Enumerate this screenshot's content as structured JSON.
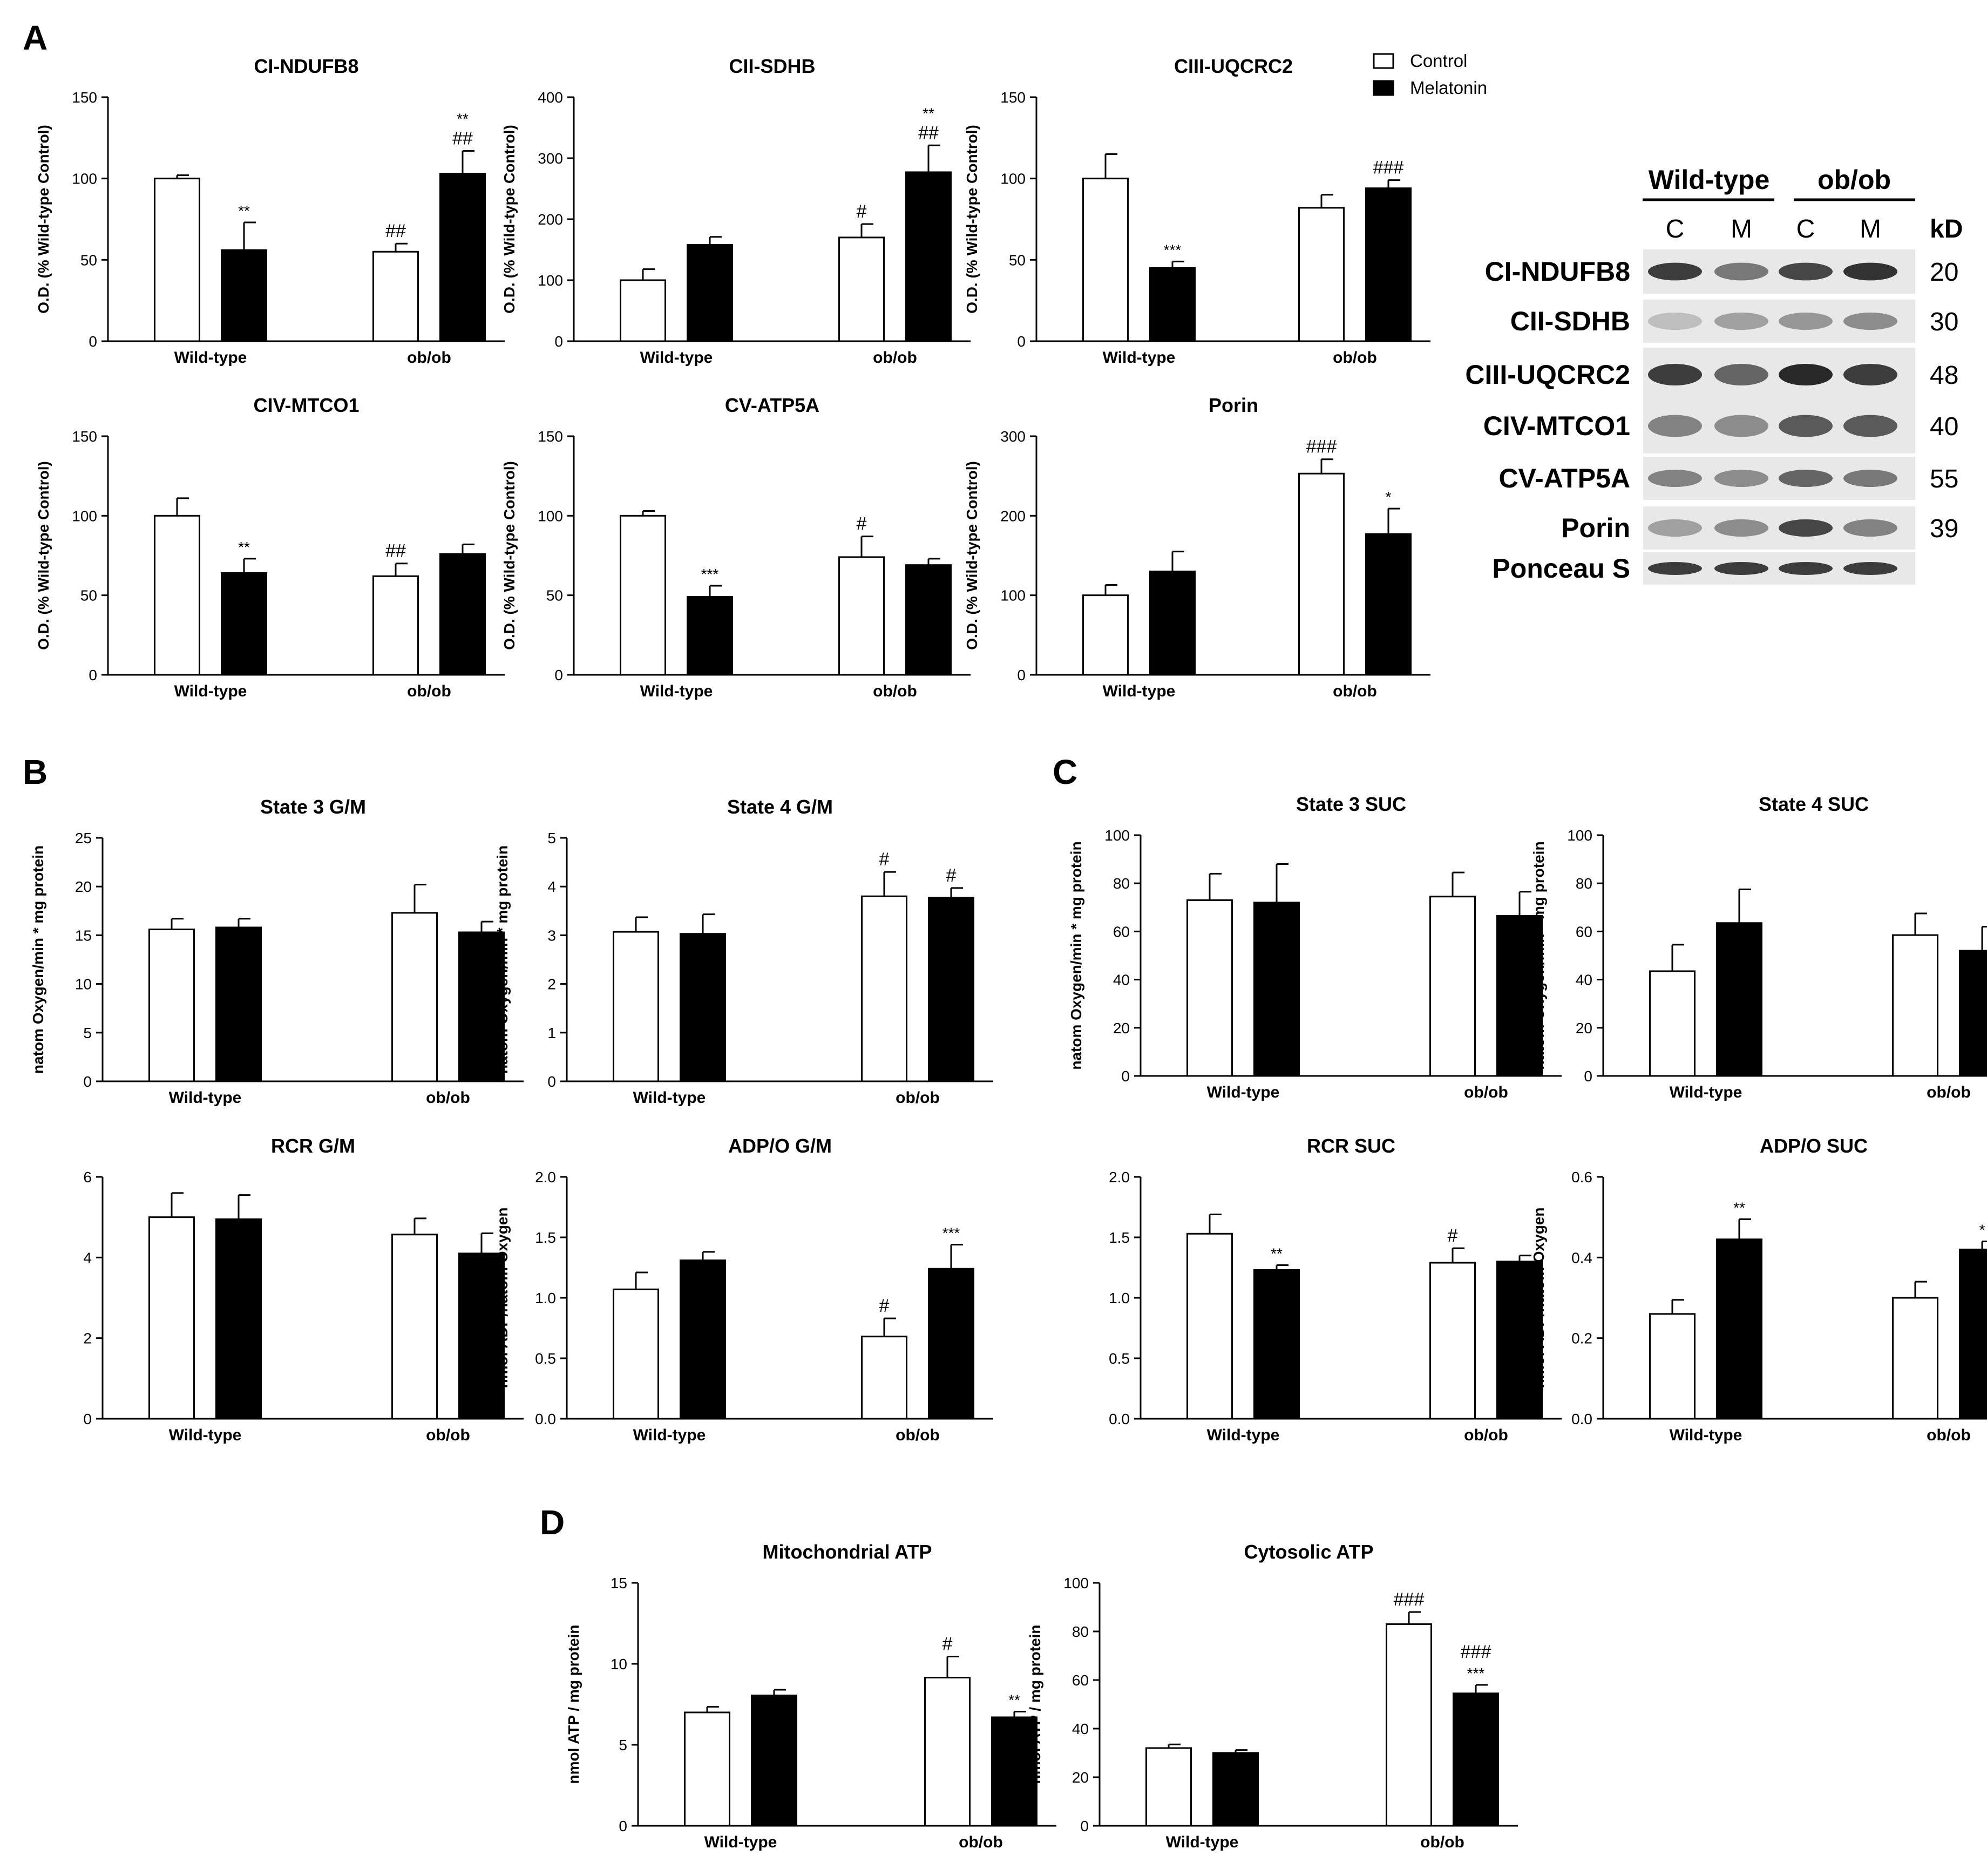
{
  "figure": {
    "panel_labels": {
      "A": "A",
      "B": "B",
      "C": "C",
      "D": "D"
    },
    "legend": {
      "control": "Control",
      "melatonin": "Melatonin"
    },
    "colors": {
      "control_fill": "#ffffff",
      "melatonin_fill": "#000000",
      "stroke": "#000000"
    }
  },
  "western_blot": {
    "group_labels": [
      "Wild-type",
      "ob/ob"
    ],
    "lane_labels": [
      "C",
      "M",
      "C",
      "M"
    ],
    "kd_header": "kD",
    "rows": [
      {
        "name": "CI-NDUFB8",
        "kd": "20"
      },
      {
        "name": "CII-SDHB",
        "kd": "30"
      },
      {
        "name": "CIII-UQCRC2",
        "kd": "48"
      },
      {
        "name": "CIV-MTCO1",
        "kd": "40"
      },
      {
        "name": "CV-ATP5A",
        "kd": "55"
      },
      {
        "name": "Porin",
        "kd": "39"
      },
      {
        "name": "Ponceau S",
        "kd": ""
      }
    ]
  },
  "chart_data": [
    {
      "id": "a1",
      "type": "bar",
      "title": "CI-NDUFB8",
      "ylabel": "O.D. (% Wild-type Control)",
      "ylim": [
        0,
        150
      ],
      "yticks": [
        "0",
        "50",
        "100",
        "150"
      ],
      "categories": [
        "Wild-type",
        "ob/ob"
      ],
      "series": [
        {
          "name": "Control",
          "values": [
            100,
            55
          ],
          "errors": [
            2,
            5
          ],
          "annotations": [
            "",
            "##"
          ]
        },
        {
          "name": "Melatonin",
          "values": [
            56,
            103
          ],
          "errors": [
            17,
            14
          ],
          "annotations": [
            "**",
            "**\n##"
          ]
        }
      ]
    },
    {
      "id": "a2",
      "type": "bar",
      "title": "CII-SDHB",
      "ylabel": "O.D. (% Wild-type Control)",
      "ylim": [
        0,
        400
      ],
      "yticks": [
        "0",
        "100",
        "200",
        "300",
        "400"
      ],
      "categories": [
        "Wild-type",
        "ob/ob"
      ],
      "series": [
        {
          "name": "Control",
          "values": [
            100,
            170
          ],
          "errors": [
            18,
            22
          ],
          "annotations": [
            "",
            "#"
          ]
        },
        {
          "name": "Melatonin",
          "values": [
            158,
            277
          ],
          "errors": [
            13,
            44
          ],
          "annotations": [
            "",
            "**\n##"
          ]
        }
      ]
    },
    {
      "id": "a3",
      "type": "bar",
      "title": "CIII-UQCRC2",
      "ylabel": "O.D. (% Wild-type Control)",
      "ylim": [
        0,
        150
      ],
      "yticks": [
        "0",
        "50",
        "100",
        "150"
      ],
      "categories": [
        "Wild-type",
        "ob/ob"
      ],
      "series": [
        {
          "name": "Control",
          "values": [
            100,
            82
          ],
          "errors": [
            15,
            8
          ],
          "annotations": [
            "",
            ""
          ]
        },
        {
          "name": "Melatonin",
          "values": [
            45,
            94
          ],
          "errors": [
            4,
            5
          ],
          "annotations": [
            "***",
            "###"
          ]
        }
      ]
    },
    {
      "id": "a4",
      "type": "bar",
      "title": "CIV-MTCO1",
      "ylabel": "O.D. (% Wild-type Control)",
      "ylim": [
        0,
        150
      ],
      "yticks": [
        "0",
        "50",
        "100",
        "150"
      ],
      "categories": [
        "Wild-type",
        "ob/ob"
      ],
      "series": [
        {
          "name": "Control",
          "values": [
            100,
            62
          ],
          "errors": [
            11,
            8
          ],
          "annotations": [
            "",
            "##"
          ]
        },
        {
          "name": "Melatonin",
          "values": [
            64,
            76
          ],
          "errors": [
            9,
            6
          ],
          "annotations": [
            "**",
            ""
          ]
        }
      ]
    },
    {
      "id": "a5",
      "type": "bar",
      "title": "CV-ATP5A",
      "ylabel": "O.D. (% Wild-type Control)",
      "ylim": [
        0,
        150
      ],
      "yticks": [
        "0",
        "50",
        "100",
        "150"
      ],
      "categories": [
        "Wild-type",
        "ob/ob"
      ],
      "series": [
        {
          "name": "Control",
          "values": [
            100,
            74
          ],
          "errors": [
            3,
            13
          ],
          "annotations": [
            "",
            "#"
          ]
        },
        {
          "name": "Melatonin",
          "values": [
            49,
            69
          ],
          "errors": [
            7,
            4
          ],
          "annotations": [
            "***",
            ""
          ]
        }
      ]
    },
    {
      "id": "a6",
      "type": "bar",
      "title": "Porin",
      "ylabel": "O.D. (% Wild-type Control)",
      "ylim": [
        0,
        300
      ],
      "yticks": [
        "0",
        "100",
        "200",
        "300"
      ],
      "categories": [
        "Wild-type",
        "ob/ob"
      ],
      "series": [
        {
          "name": "Control",
          "values": [
            100,
            253
          ],
          "errors": [
            13,
            18
          ],
          "annotations": [
            "",
            "###"
          ]
        },
        {
          "name": "Melatonin",
          "values": [
            130,
            177
          ],
          "errors": [
            25,
            32
          ],
          "annotations": [
            "",
            "*"
          ]
        }
      ]
    },
    {
      "id": "b1",
      "type": "bar",
      "title": "State 3 G/M",
      "ylabel": "natom Oxygen/min * mg protein",
      "ylim": [
        0,
        25
      ],
      "yticks": [
        "0",
        "5",
        "10",
        "15",
        "20",
        "25"
      ],
      "categories": [
        "Wild-type",
        "ob/ob"
      ],
      "series": [
        {
          "name": "Control",
          "values": [
            15.6,
            17.3
          ],
          "errors": [
            1.1,
            2.9
          ],
          "annotations": [
            "",
            ""
          ]
        },
        {
          "name": "Melatonin",
          "values": [
            15.8,
            15.3
          ],
          "errors": [
            0.9,
            1.1
          ],
          "annotations": [
            "",
            ""
          ]
        }
      ]
    },
    {
      "id": "b2",
      "type": "bar",
      "title": "State 4 G/M",
      "ylabel": "natom Oxygen/min * mg protein",
      "ylim": [
        0,
        5
      ],
      "yticks": [
        "0",
        "1",
        "2",
        "3",
        "4",
        "5"
      ],
      "categories": [
        "Wild-type",
        "ob/ob"
      ],
      "series": [
        {
          "name": "Control",
          "values": [
            3.07,
            3.8
          ],
          "errors": [
            0.3,
            0.5
          ],
          "annotations": [
            "",
            "#"
          ]
        },
        {
          "name": "Melatonin",
          "values": [
            3.03,
            3.77
          ],
          "errors": [
            0.4,
            0.2
          ],
          "annotations": [
            "",
            "#"
          ]
        }
      ]
    },
    {
      "id": "b3",
      "type": "bar",
      "title": "RCR G/M",
      "ylabel": "",
      "ylim": [
        0,
        6
      ],
      "yticks": [
        "0",
        "2",
        "4",
        "6"
      ],
      "categories": [
        "Wild-type",
        "ob/ob"
      ],
      "series": [
        {
          "name": "Control",
          "values": [
            5.0,
            4.57
          ],
          "errors": [
            0.6,
            0.4
          ],
          "annotations": [
            "",
            ""
          ]
        },
        {
          "name": "Melatonin",
          "values": [
            4.95,
            4.1
          ],
          "errors": [
            0.6,
            0.5
          ],
          "annotations": [
            "",
            ""
          ]
        }
      ]
    },
    {
      "id": "b4",
      "type": "bar",
      "title": "ADP/O G/M",
      "ylabel": "nmol ADP/natom Oxygen",
      "ylim": [
        0,
        2
      ],
      "yticks": [
        "0.0",
        "0.5",
        "1.0",
        "1.5",
        "2.0"
      ],
      "categories": [
        "Wild-type",
        "ob/ob"
      ],
      "series": [
        {
          "name": "Control",
          "values": [
            1.07,
            0.68
          ],
          "errors": [
            0.14,
            0.15
          ],
          "annotations": [
            "",
            "#"
          ]
        },
        {
          "name": "Melatonin",
          "values": [
            1.31,
            1.24
          ],
          "errors": [
            0.07,
            0.2
          ],
          "annotations": [
            "",
            "***"
          ]
        }
      ]
    },
    {
      "id": "c1",
      "type": "bar",
      "title": "State 3 SUC",
      "ylabel": "natom Oxygen/min * mg protein",
      "ylim": [
        0,
        100
      ],
      "yticks": [
        "0",
        "20",
        "40",
        "60",
        "80",
        "100"
      ],
      "categories": [
        "Wild-type",
        "ob/ob"
      ],
      "series": [
        {
          "name": "Control",
          "values": [
            73,
            74.5
          ],
          "errors": [
            11,
            10
          ],
          "annotations": [
            "",
            ""
          ]
        },
        {
          "name": "Melatonin",
          "values": [
            72,
            66.5
          ],
          "errors": [
            16,
            10
          ],
          "annotations": [
            "",
            ""
          ]
        }
      ]
    },
    {
      "id": "c2",
      "type": "bar",
      "title": "State 4 SUC",
      "ylabel": "natom Oxygen/min * mg protein",
      "ylim": [
        0,
        100
      ],
      "yticks": [
        "0",
        "20",
        "40",
        "60",
        "80",
        "100"
      ],
      "categories": [
        "Wild-type",
        "ob/ob"
      ],
      "series": [
        {
          "name": "Control",
          "values": [
            43.5,
            58.5
          ],
          "errors": [
            11,
            9
          ],
          "annotations": [
            "",
            ""
          ]
        },
        {
          "name": "Melatonin",
          "values": [
            63.5,
            52
          ],
          "errors": [
            14,
            10
          ],
          "annotations": [
            "",
            ""
          ]
        }
      ]
    },
    {
      "id": "c3",
      "type": "bar",
      "title": "RCR SUC",
      "ylabel": "",
      "ylim": [
        0,
        2
      ],
      "yticks": [
        "0.0",
        "0.5",
        "1.0",
        "1.5",
        "2.0"
      ],
      "categories": [
        "Wild-type",
        "ob/ob"
      ],
      "series": [
        {
          "name": "Control",
          "values": [
            1.53,
            1.29
          ],
          "errors": [
            0.16,
            0.12
          ],
          "annotations": [
            "",
            "#"
          ]
        },
        {
          "name": "Melatonin",
          "values": [
            1.23,
            1.3
          ],
          "errors": [
            0.04,
            0.05
          ],
          "annotations": [
            "**",
            ""
          ]
        }
      ]
    },
    {
      "id": "c4",
      "type": "bar",
      "title": "ADP/O SUC",
      "ylabel": "nmol ADP/natom Oxygen",
      "ylim": [
        0,
        0.6
      ],
      "yticks": [
        "0.0",
        "0.2",
        "0.4",
        "0.6"
      ],
      "categories": [
        "Wild-type",
        "ob/ob"
      ],
      "series": [
        {
          "name": "Control",
          "values": [
            0.26,
            0.3
          ],
          "errors": [
            0.035,
            0.04
          ],
          "annotations": [
            "",
            ""
          ]
        },
        {
          "name": "Melatonin",
          "values": [
            0.445,
            0.42
          ],
          "errors": [
            0.05,
            0.02
          ],
          "annotations": [
            "**",
            "*"
          ]
        }
      ]
    },
    {
      "id": "d1",
      "type": "bar",
      "title": "Mitochondrial ATP",
      "ylabel": "nmol ATP / mg protein",
      "ylim": [
        0,
        15
      ],
      "yticks": [
        "0",
        "5",
        "10",
        "15"
      ],
      "categories": [
        "Wild-type",
        "ob/ob"
      ],
      "series": [
        {
          "name": "Control",
          "values": [
            7.0,
            9.15
          ],
          "errors": [
            0.35,
            1.3
          ],
          "annotations": [
            "",
            "#"
          ]
        },
        {
          "name": "Melatonin",
          "values": [
            8.05,
            6.7
          ],
          "errors": [
            0.35,
            0.35
          ],
          "annotations": [
            "",
            "**"
          ]
        }
      ]
    },
    {
      "id": "d2",
      "type": "bar",
      "title": "Cytosolic ATP",
      "ylabel": "nmol ATP / mg protein",
      "ylim": [
        0,
        100
      ],
      "yticks": [
        "0",
        "20",
        "40",
        "60",
        "80",
        "100"
      ],
      "categories": [
        "Wild-type",
        "ob/ob"
      ],
      "series": [
        {
          "name": "Control",
          "values": [
            32,
            83
          ],
          "errors": [
            1.5,
            5
          ],
          "annotations": [
            "",
            "###"
          ]
        },
        {
          "name": "Melatonin",
          "values": [
            30,
            54.5
          ],
          "errors": [
            1.2,
            3.5
          ],
          "annotations": [
            "",
            "###\n***"
          ]
        }
      ]
    }
  ]
}
